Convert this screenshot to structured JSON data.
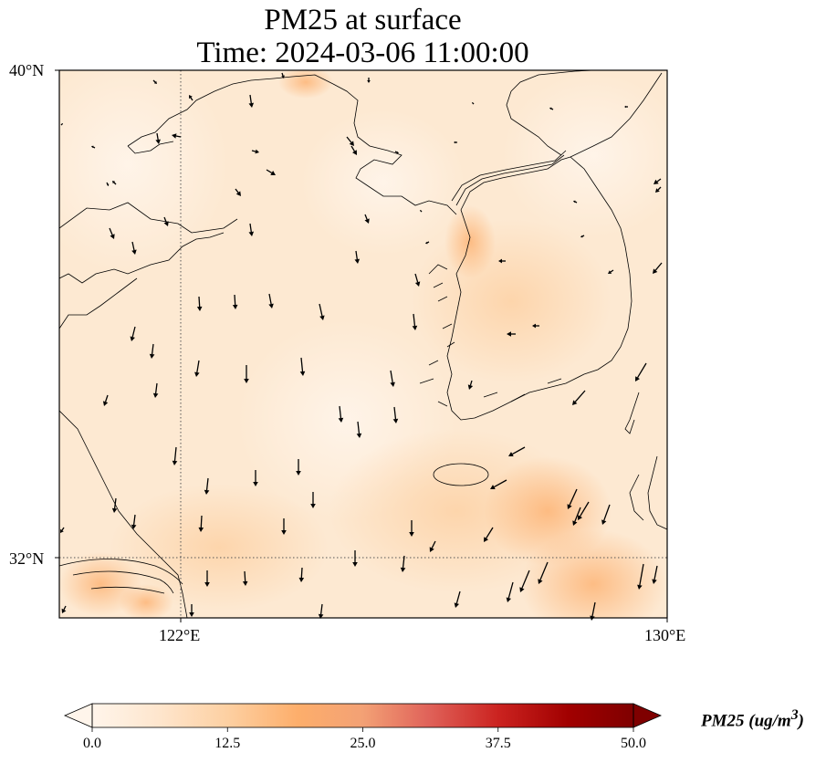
{
  "title": {
    "line1": "PM25 at surface",
    "line2": "Time: 2024-03-06 11:00:00"
  },
  "map": {
    "latitude_labels": [
      "40°N",
      "32°N"
    ],
    "longitude_labels": [
      "122°E",
      "130°E"
    ],
    "extent": {
      "lon_min": 120,
      "lon_max": 130,
      "lat_min": 31,
      "lat_max": 40
    },
    "gridlines": {
      "lons": [
        122
      ],
      "lats": [
        32
      ]
    }
  },
  "colorbar": {
    "variable": "PM25",
    "units": "ug/m",
    "units_superscript": "3",
    "tick_labels": [
      "0.0",
      "12.5",
      "25.0",
      "37.5",
      "50.0"
    ],
    "vmin": 0,
    "vmax": 50,
    "extend": "both",
    "colormap": [
      "#fff5eb",
      "#fee6ce",
      "#fdd0a2",
      "#fdae6b",
      "#fd8d3c",
      "#f16913",
      "#d94801",
      "#a63603",
      "#7f2704"
    ]
  }
}
